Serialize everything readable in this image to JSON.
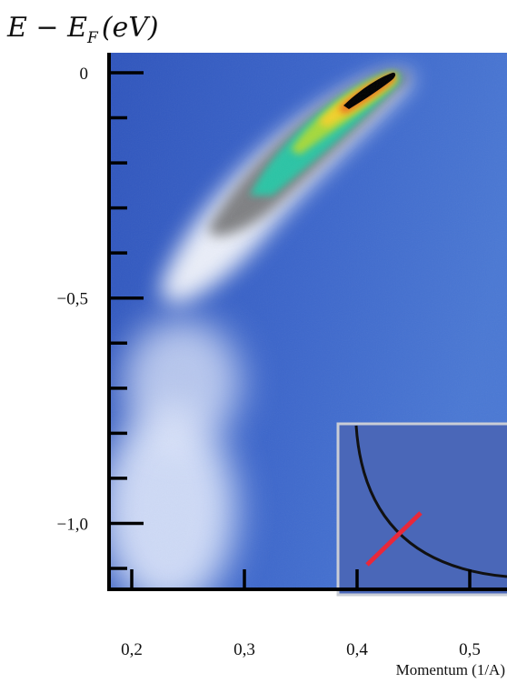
{
  "chart_data": {
    "type": "heatmap",
    "ylabel_main": "E − E",
    "ylabel_sub": "F",
    "ylabel_unit": "(eV)",
    "xlabel": "Momentum (1/A)",
    "xlim": [
      0.175,
      0.5
    ],
    "ylim": [
      -1.2,
      0.05
    ],
    "x_ticks": [
      {
        "value": 0.2,
        "label": "0,2"
      },
      {
        "value": 0.3,
        "label": "0,3"
      },
      {
        "value": 0.4,
        "label": "0,4"
      },
      {
        "value": 0.5,
        "label": "0,5"
      }
    ],
    "y_ticks": [
      {
        "value": 0.0,
        "label": "0"
      },
      {
        "value": -0.5,
        "label": "−0,5"
      },
      {
        "value": -1.0,
        "label": "−1,0"
      }
    ],
    "y_minor_step": 0.1,
    "dispersion_peak": [
      {
        "k": 0.425,
        "E": 0.0
      },
      {
        "k": 0.405,
        "E": -0.03
      },
      {
        "k": 0.38,
        "E": -0.07
      },
      {
        "k": 0.355,
        "E": -0.14
      },
      {
        "k": 0.33,
        "E": -0.21
      },
      {
        "k": 0.31,
        "E": -0.27
      },
      {
        "k": 0.285,
        "E": -0.33
      }
    ],
    "colors": {
      "background": "#3a63c7",
      "high_intensity": "#000000",
      "mid_intensity": "#2cc7a3",
      "low_intensity": "#ffffff",
      "inset_cut": "#e8283a",
      "inset_fermi_surface": "#111111"
    },
    "inset": {
      "present": true
    }
  }
}
